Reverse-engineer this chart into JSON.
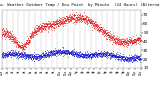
{
  "title": "Milw. Weather Outdoor Temp / Dew Point by Minute (24 Hours) (Alternate)",
  "background_color": "#ffffff",
  "plot_bg_color": "#ffffff",
  "grid_color": "#999999",
  "temp_color": "#dd0000",
  "dew_color": "#0000cc",
  "ylim": [
    10,
    75
  ],
  "ytick_labels": [
    "70",
    "60",
    "50",
    "40",
    "30",
    "20",
    "10"
  ],
  "ytick_vals": [
    70,
    60,
    50,
    40,
    30,
    20,
    10
  ],
  "n_points": 1440,
  "n_gridlines": 25
}
